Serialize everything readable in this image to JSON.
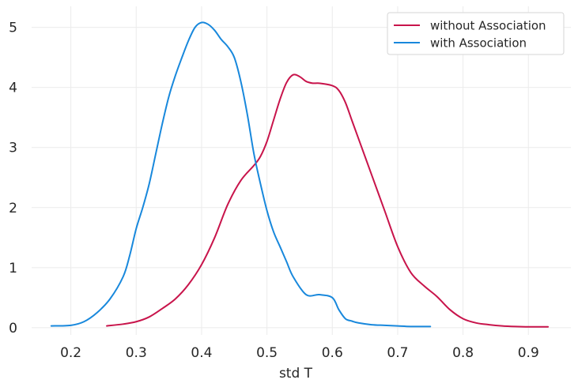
{
  "chart_data": {
    "type": "line",
    "title": "",
    "xlabel": "std T",
    "ylabel": "",
    "xlim": [
      0.14,
      0.965
    ],
    "ylim": [
      -0.12,
      5.35
    ],
    "grid": true,
    "legend_position": "top-right",
    "x_ticks": [
      0.2,
      0.3,
      0.4,
      0.5,
      0.6,
      0.7,
      0.8,
      0.9
    ],
    "x_tick_labels": [
      "0.2",
      "0.3",
      "0.4",
      "0.5",
      "0.6",
      "0.7",
      "0.8",
      "0.9"
    ],
    "y_ticks": [
      0,
      1,
      2,
      3,
      4,
      5
    ],
    "y_tick_labels": [
      "0",
      "1",
      "2",
      "3",
      "4",
      "5"
    ],
    "series": [
      {
        "name": "without Association",
        "color": "#c8144b",
        "x": [
          0.255,
          0.28,
          0.3,
          0.32,
          0.34,
          0.36,
          0.38,
          0.4,
          0.42,
          0.44,
          0.46,
          0.48,
          0.49,
          0.5,
          0.51,
          0.52,
          0.53,
          0.54,
          0.55,
          0.56,
          0.57,
          0.58,
          0.6,
          0.61,
          0.62,
          0.63,
          0.64,
          0.66,
          0.68,
          0.7,
          0.72,
          0.74,
          0.76,
          0.78,
          0.8,
          0.82,
          0.84,
          0.86,
          0.88,
          0.9,
          0.93
        ],
        "y": [
          0.03,
          0.06,
          0.1,
          0.18,
          0.32,
          0.48,
          0.72,
          1.05,
          1.5,
          2.05,
          2.45,
          2.7,
          2.85,
          3.1,
          3.45,
          3.8,
          4.08,
          4.21,
          4.18,
          4.1,
          4.07,
          4.07,
          4.03,
          3.95,
          3.75,
          3.45,
          3.15,
          2.55,
          1.95,
          1.35,
          0.92,
          0.7,
          0.52,
          0.3,
          0.15,
          0.08,
          0.05,
          0.03,
          0.02,
          0.015,
          0.015
        ]
      },
      {
        "name": "with Association",
        "color": "#1888dc",
        "x": [
          0.17,
          0.2,
          0.22,
          0.24,
          0.26,
          0.28,
          0.29,
          0.3,
          0.31,
          0.32,
          0.33,
          0.34,
          0.35,
          0.36,
          0.37,
          0.38,
          0.39,
          0.4,
          0.41,
          0.42,
          0.43,
          0.44,
          0.45,
          0.46,
          0.47,
          0.48,
          0.49,
          0.5,
          0.51,
          0.52,
          0.53,
          0.54,
          0.56,
          0.58,
          0.6,
          0.61,
          0.62,
          0.63,
          0.64,
          0.66,
          0.68,
          0.7,
          0.72,
          0.75
        ],
        "y": [
          0.03,
          0.04,
          0.1,
          0.25,
          0.48,
          0.85,
          1.2,
          1.65,
          2.0,
          2.4,
          2.9,
          3.4,
          3.85,
          4.2,
          4.5,
          4.78,
          5.0,
          5.08,
          5.05,
          4.95,
          4.8,
          4.68,
          4.5,
          4.1,
          3.55,
          2.9,
          2.4,
          1.95,
          1.6,
          1.35,
          1.1,
          0.85,
          0.55,
          0.55,
          0.5,
          0.3,
          0.15,
          0.11,
          0.08,
          0.05,
          0.04,
          0.03,
          0.02,
          0.02
        ]
      }
    ]
  }
}
